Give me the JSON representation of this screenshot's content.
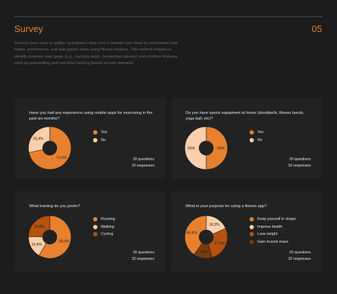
{
  "header": {
    "title": "Survey",
    "number": "05",
    "description": "Surveys were used to gather quantitative data from a broader user base to understand their habits, preferences, and pain points when using fitness trackers. This method helped us identify common user goals (e.g., tracking steps, monitoring calories) and prioritize features such as goal-setting and real-time tracking based on user demand."
  },
  "cards": [
    {
      "questions": "20 questions",
      "responses": "32 responses"
    },
    {
      "questions": "20 questions",
      "responses": "32 responses"
    },
    {
      "questions": "20 questions",
      "responses": "32 responses"
    },
    {
      "questions": "20 questions",
      "responses": "32 responses"
    }
  ],
  "colors": {
    "orange": "#e8812f",
    "peach": "#fad0aa",
    "dark_orange": "#b6520f",
    "brown": "#7a3a10",
    "hole": "#1c1c1c",
    "accent": "#e8812f"
  },
  "chart_data": [
    {
      "type": "pie",
      "title": "Have you had any experience using mobile apps for exercising in the past six months?",
      "categories": [
        "Yes",
        "No"
      ],
      "values": [
        71.6,
        28.4
      ],
      "labels": [
        "71,6%",
        "28,4%"
      ],
      "colors": [
        "#e8812f",
        "#fad0aa"
      ],
      "label_colors": [
        "#1c1c1c",
        "#1c1c1c"
      ]
    },
    {
      "type": "pie",
      "title": "Do you have sports equipment at home (dumbbells, fitness bands, yoga ball, etc)?",
      "categories": [
        "Yes",
        "No"
      ],
      "values": [
        50,
        50
      ],
      "labels": [
        "50%",
        "50%"
      ],
      "colors": [
        "#e8812f",
        "#fad0aa"
      ],
      "label_colors": [
        "#1c1c1c",
        "#1c1c1c"
      ]
    },
    {
      "type": "pie",
      "title": "What training do you prefer?",
      "categories": [
        "Running",
        "Walking",
        "Cycling"
      ],
      "values": [
        58.4,
        16.8,
        24.8
      ],
      "labels": [
        "58,4%",
        "16,8%",
        "24,8%"
      ],
      "colors": [
        "#e8812f",
        "#fad0aa",
        "#b6520f"
      ],
      "label_colors": [
        "#1c1c1c",
        "#1c1c1c",
        "#1c1c1c"
      ]
    },
    {
      "type": "pie",
      "title": "What is your purpose for using a fitness app?",
      "categories": [
        "Keep yourself in shape",
        "Improve health",
        "Lose weight",
        "Gain muscle mass"
      ],
      "values": [
        40.4,
        18.3,
        27.3,
        14.0
      ],
      "labels": [
        "40,4%",
        "18,3%",
        "27,3%",
        "14%"
      ],
      "colors": [
        "#e8812f",
        "#fad0aa",
        "#b6520f",
        "#7a3a10"
      ],
      "label_colors": [
        "#1c1c1c",
        "#1c1c1c",
        "#1c1c1c",
        "#1c1c1c"
      ],
      "draw_order": [
        1,
        2,
        3,
        0
      ]
    }
  ]
}
